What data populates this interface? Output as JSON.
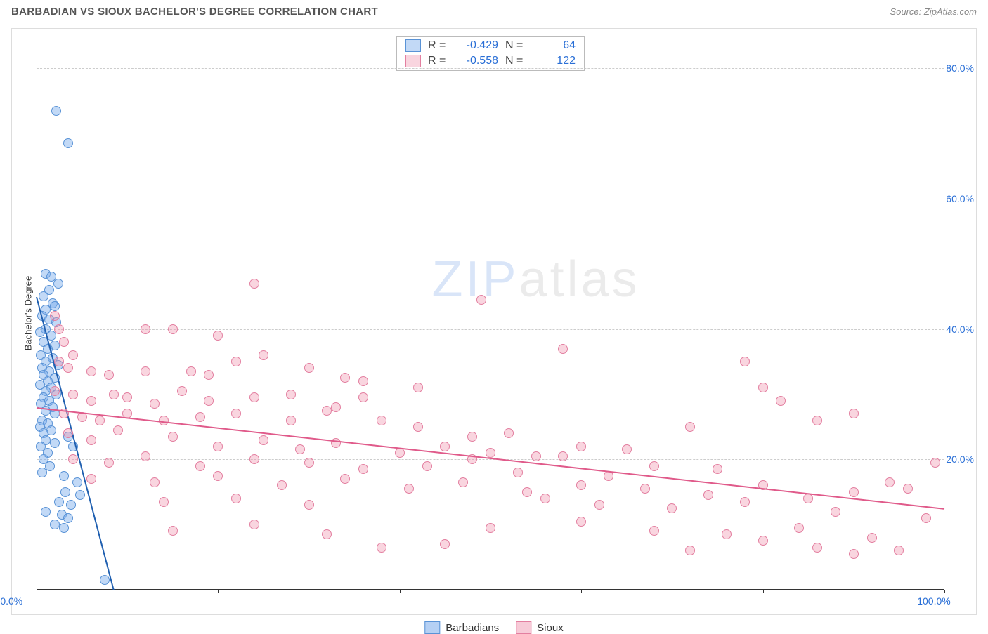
{
  "header": {
    "title": "BARBADIAN VS SIOUX BACHELOR'S DEGREE CORRELATION CHART",
    "source": "Source: ZipAtlas.com"
  },
  "watermark": {
    "bold": "ZIP",
    "light": "atlas"
  },
  "chart": {
    "type": "scatter",
    "y_axis_title": "Bachelor's Degree",
    "xlim": [
      0,
      100
    ],
    "ylim": [
      0,
      85
    ],
    "x_ticks": [
      0,
      20,
      40,
      60,
      80,
      100
    ],
    "x_tick_labels": {
      "0": "0.0%",
      "100": "100.0%"
    },
    "y_gridlines": [
      20,
      40,
      60,
      80
    ],
    "y_tick_labels": {
      "20": "20.0%",
      "40": "40.0%",
      "60": "60.0%",
      "80": "80.0%"
    },
    "background_color": "#ffffff",
    "grid_color": "#cccccc",
    "axis_color": "#333333",
    "y_label_color": "#2a6fd6",
    "x_label_color": "#2a6fd6",
    "marker_size": 14,
    "series": [
      {
        "name": "Barbadians",
        "fill_color": "rgba(120,170,235,0.45)",
        "stroke_color": "#5a93d6",
        "trend_color": "#1f5fb0",
        "trend": {
          "x1": 0,
          "y1": 45,
          "x2": 8.5,
          "y2": 0
        },
        "stats": {
          "R": "-0.429",
          "N": "64"
        },
        "points": [
          [
            2.2,
            73.5
          ],
          [
            3.5,
            68.5
          ],
          [
            1.0,
            48.5
          ],
          [
            1.6,
            48.0
          ],
          [
            2.4,
            47.0
          ],
          [
            1.4,
            46.0
          ],
          [
            0.8,
            45.0
          ],
          [
            1.8,
            44.0
          ],
          [
            2.0,
            43.5
          ],
          [
            1.0,
            43.0
          ],
          [
            0.6,
            42.0
          ],
          [
            1.4,
            41.5
          ],
          [
            2.2,
            41.0
          ],
          [
            1.0,
            40.0
          ],
          [
            0.4,
            39.5
          ],
          [
            1.6,
            39.0
          ],
          [
            0.8,
            38.0
          ],
          [
            2.0,
            37.5
          ],
          [
            1.2,
            37.0
          ],
          [
            0.5,
            36.0
          ],
          [
            1.8,
            35.5
          ],
          [
            1.0,
            35.0
          ],
          [
            2.4,
            34.5
          ],
          [
            0.6,
            34.0
          ],
          [
            1.4,
            33.5
          ],
          [
            0.8,
            33.0
          ],
          [
            2.0,
            32.5
          ],
          [
            1.2,
            32.0
          ],
          [
            0.4,
            31.5
          ],
          [
            1.6,
            31.0
          ],
          [
            1.0,
            30.5
          ],
          [
            2.2,
            30.0
          ],
          [
            0.8,
            29.5
          ],
          [
            1.4,
            29.0
          ],
          [
            0.5,
            28.5
          ],
          [
            1.8,
            28.0
          ],
          [
            1.0,
            27.5
          ],
          [
            2.0,
            27.0
          ],
          [
            0.6,
            26.0
          ],
          [
            1.2,
            25.5
          ],
          [
            0.4,
            25.0
          ],
          [
            1.6,
            24.5
          ],
          [
            0.8,
            24.0
          ],
          [
            1.0,
            23.0
          ],
          [
            2.0,
            22.5
          ],
          [
            0.5,
            22.0
          ],
          [
            3.5,
            23.5
          ],
          [
            4.0,
            22.0
          ],
          [
            1.2,
            21.0
          ],
          [
            0.8,
            20.0
          ],
          [
            1.5,
            19.0
          ],
          [
            0.6,
            18.0
          ],
          [
            3.0,
            17.5
          ],
          [
            4.5,
            16.5
          ],
          [
            3.2,
            15.0
          ],
          [
            4.8,
            14.5
          ],
          [
            2.5,
            13.5
          ],
          [
            3.8,
            13.0
          ],
          [
            1.0,
            12.0
          ],
          [
            2.8,
            11.5
          ],
          [
            3.5,
            11.0
          ],
          [
            2.0,
            10.0
          ],
          [
            3.0,
            9.5
          ],
          [
            7.5,
            1.5
          ]
        ]
      },
      {
        "name": "Sioux",
        "fill_color": "rgba(240,150,175,0.40)",
        "stroke_color": "#e37fa0",
        "trend_color": "#e05a8a",
        "trend": {
          "x1": 0,
          "y1": 28,
          "x2": 100,
          "y2": 12.5
        },
        "stats": {
          "R": "-0.558",
          "N": "122"
        },
        "points": [
          [
            2.0,
            42.0
          ],
          [
            2.5,
            40.0
          ],
          [
            24.0,
            47.0
          ],
          [
            49.0,
            44.5
          ],
          [
            3.0,
            38.0
          ],
          [
            4.0,
            36.0
          ],
          [
            12.0,
            40.0
          ],
          [
            15.0,
            40.0
          ],
          [
            20.0,
            39.0
          ],
          [
            2.5,
            35.0
          ],
          [
            3.5,
            34.0
          ],
          [
            6.0,
            33.5
          ],
          [
            8.0,
            33.0
          ],
          [
            12.0,
            33.5
          ],
          [
            17.0,
            33.5
          ],
          [
            19.0,
            33.0
          ],
          [
            22.0,
            35.0
          ],
          [
            25.0,
            36.0
          ],
          [
            34.0,
            32.5
          ],
          [
            36.0,
            32.0
          ],
          [
            58.0,
            37.0
          ],
          [
            78.0,
            35.0
          ],
          [
            2.0,
            30.5
          ],
          [
            4.0,
            30.0
          ],
          [
            6.0,
            29.0
          ],
          [
            8.5,
            30.0
          ],
          [
            10.0,
            29.5
          ],
          [
            13.0,
            28.5
          ],
          [
            16.0,
            30.5
          ],
          [
            19.0,
            29.0
          ],
          [
            24.0,
            29.5
          ],
          [
            28.0,
            30.0
          ],
          [
            30.0,
            34.0
          ],
          [
            33.0,
            28.0
          ],
          [
            36.0,
            29.5
          ],
          [
            42.0,
            31.0
          ],
          [
            3.0,
            27.0
          ],
          [
            5.0,
            26.5
          ],
          [
            7.0,
            26.0
          ],
          [
            10.0,
            27.0
          ],
          [
            14.0,
            26.0
          ],
          [
            18.0,
            26.5
          ],
          [
            22.0,
            27.0
          ],
          [
            28.0,
            26.0
          ],
          [
            32.0,
            27.5
          ],
          [
            38.0,
            26.0
          ],
          [
            42.0,
            25.0
          ],
          [
            48.0,
            23.5
          ],
          [
            52.0,
            24.0
          ],
          [
            80.0,
            31.0
          ],
          [
            82.0,
            29.0
          ],
          [
            86.0,
            26.0
          ],
          [
            90.0,
            27.0
          ],
          [
            3.5,
            24.0
          ],
          [
            6.0,
            23.0
          ],
          [
            9.0,
            24.5
          ],
          [
            15.0,
            23.5
          ],
          [
            20.0,
            22.0
          ],
          [
            25.0,
            23.0
          ],
          [
            29.0,
            21.5
          ],
          [
            33.0,
            22.5
          ],
          [
            40.0,
            21.0
          ],
          [
            45.0,
            22.0
          ],
          [
            50.0,
            21.0
          ],
          [
            55.0,
            20.5
          ],
          [
            60.0,
            22.0
          ],
          [
            65.0,
            21.5
          ],
          [
            72.0,
            25.0
          ],
          [
            4.0,
            20.0
          ],
          [
            8.0,
            19.5
          ],
          [
            12.0,
            20.5
          ],
          [
            18.0,
            19.0
          ],
          [
            24.0,
            20.0
          ],
          [
            30.0,
            19.5
          ],
          [
            36.0,
            18.5
          ],
          [
            43.0,
            19.0
          ],
          [
            48.0,
            20.0
          ],
          [
            53.0,
            18.0
          ],
          [
            58.0,
            20.5
          ],
          [
            63.0,
            17.5
          ],
          [
            68.0,
            19.0
          ],
          [
            75.0,
            18.5
          ],
          [
            99.0,
            19.5
          ],
          [
            6.0,
            17.0
          ],
          [
            13.0,
            16.5
          ],
          [
            20.0,
            17.5
          ],
          [
            27.0,
            16.0
          ],
          [
            34.0,
            17.0
          ],
          [
            41.0,
            15.5
          ],
          [
            47.0,
            16.5
          ],
          [
            54.0,
            15.0
          ],
          [
            60.0,
            16.0
          ],
          [
            67.0,
            15.5
          ],
          [
            74.0,
            14.5
          ],
          [
            80.0,
            16.0
          ],
          [
            85.0,
            14.0
          ],
          [
            90.0,
            15.0
          ],
          [
            94.0,
            16.5
          ],
          [
            14.0,
            13.5
          ],
          [
            22.0,
            14.0
          ],
          [
            30.0,
            13.0
          ],
          [
            56.0,
            14.0
          ],
          [
            62.0,
            13.0
          ],
          [
            70.0,
            12.5
          ],
          [
            78.0,
            13.5
          ],
          [
            88.0,
            12.0
          ],
          [
            96.0,
            15.5
          ],
          [
            15.0,
            9.0
          ],
          [
            24.0,
            10.0
          ],
          [
            32.0,
            8.5
          ],
          [
            50.0,
            9.5
          ],
          [
            60.0,
            10.5
          ],
          [
            68.0,
            9.0
          ],
          [
            76.0,
            8.5
          ],
          [
            84.0,
            9.5
          ],
          [
            92.0,
            8.0
          ],
          [
            98.0,
            11.0
          ],
          [
            38.0,
            6.5
          ],
          [
            45.0,
            7.0
          ],
          [
            72.0,
            6.0
          ],
          [
            80.0,
            7.5
          ],
          [
            86.0,
            6.5
          ],
          [
            90.0,
            5.5
          ],
          [
            95.0,
            6.0
          ]
        ]
      }
    ],
    "legend": {
      "items": [
        {
          "label": "Barbadians",
          "fill": "rgba(120,170,235,0.55)",
          "stroke": "#5a93d6"
        },
        {
          "label": "Sioux",
          "fill": "rgba(240,150,175,0.50)",
          "stroke": "#e37fa0"
        }
      ]
    }
  }
}
